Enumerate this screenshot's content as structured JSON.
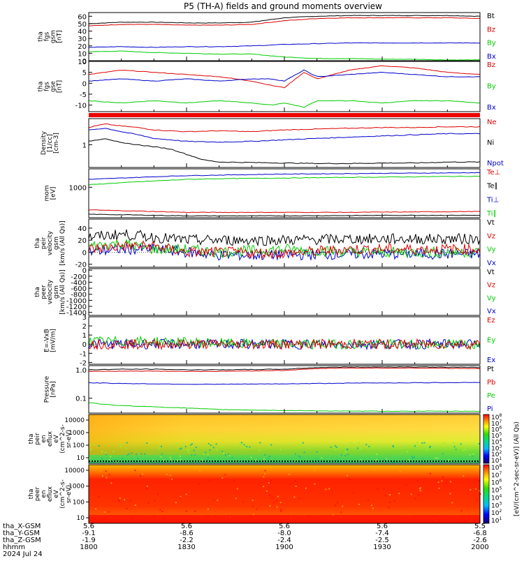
{
  "title": "P5 (TH-A) fields and ground moments overview",
  "colors": {
    "black": "#000000",
    "red": "#dd0000",
    "green": "#00cc00",
    "blue": "#0000cc",
    "axis": "#000000"
  },
  "chart_data": [
    {
      "type": "line",
      "id": "bgsm",
      "ylabel": [
        "tha",
        "fgs",
        "gsm",
        "[nT]"
      ],
      "ylim": [
        0,
        65
      ],
      "yticks": [
        0,
        10,
        20,
        30,
        40,
        50,
        60
      ],
      "legend": [
        {
          "name": "Bt",
          "color": "black"
        },
        {
          "name": "Bz",
          "color": "red"
        },
        {
          "name": "By",
          "color": "green"
        },
        {
          "name": "Bx",
          "color": "blue"
        }
      ],
      "series": [
        {
          "name": "Bt",
          "color": "black",
          "x": [
            0,
            10,
            20,
            30,
            40,
            50,
            60,
            70,
            80,
            90,
            100,
            110,
            120
          ],
          "y": [
            50,
            52,
            52,
            51,
            51,
            52,
            58,
            60,
            61,
            61,
            61,
            61,
            60
          ]
        },
        {
          "name": "Bz",
          "color": "red",
          "x": [
            0,
            10,
            20,
            30,
            40,
            50,
            60,
            70,
            80,
            90,
            100,
            110,
            120
          ],
          "y": [
            47,
            49,
            49,
            48,
            48,
            49,
            54,
            57,
            58,
            58,
            58,
            58,
            57
          ]
        },
        {
          "name": "By",
          "color": "green",
          "x": [
            0,
            10,
            20,
            30,
            40,
            50,
            60,
            70,
            80,
            90,
            100,
            110,
            120
          ],
          "y": [
            12,
            13,
            11,
            10,
            9,
            9,
            5,
            3,
            3,
            2,
            2,
            1,
            1
          ]
        },
        {
          "name": "Bx",
          "color": "blue",
          "x": [
            0,
            10,
            20,
            30,
            40,
            50,
            60,
            70,
            80,
            90,
            100,
            110,
            120
          ],
          "y": [
            18,
            19,
            18,
            19,
            19,
            20,
            22,
            23,
            24,
            24,
            24,
            24,
            24
          ]
        }
      ]
    },
    {
      "type": "line",
      "id": "bgse",
      "ylabel": [
        "tha",
        "fgs",
        "gse",
        "[nT]"
      ],
      "ylim": [
        -13,
        10
      ],
      "yticks": [
        -10,
        -5,
        0,
        5,
        10
      ],
      "legend": [
        {
          "name": "Bz",
          "color": "red"
        },
        {
          "name": "By",
          "color": "green"
        },
        {
          "name": "Bx",
          "color": "blue"
        }
      ],
      "series": [
        {
          "name": "Bz",
          "color": "red",
          "x": [
            0,
            10,
            20,
            30,
            40,
            50,
            56,
            60,
            66,
            70,
            80,
            90,
            100,
            110,
            120
          ],
          "y": [
            4,
            6,
            5,
            4,
            3,
            1,
            -1,
            -2,
            5,
            2,
            6,
            8,
            7,
            5,
            4
          ]
        },
        {
          "name": "By",
          "color": "green",
          "x": [
            0,
            10,
            20,
            30,
            40,
            50,
            56,
            60,
            66,
            70,
            80,
            90,
            100,
            110,
            120
          ],
          "y": [
            -8,
            -9,
            -8,
            -9,
            -8,
            -9,
            -10,
            -9,
            -11,
            -8,
            -8,
            -9,
            -8,
            -8,
            -9
          ]
        },
        {
          "name": "Bx",
          "color": "blue",
          "x": [
            0,
            10,
            20,
            30,
            40,
            50,
            56,
            60,
            66,
            70,
            80,
            90,
            100,
            110,
            120
          ],
          "y": [
            1,
            2,
            1,
            2,
            1,
            2,
            2,
            1,
            6,
            3,
            4,
            5,
            4,
            3,
            3
          ]
        }
      ]
    },
    {
      "type": "line",
      "id": "density",
      "log": true,
      "ylabel": [
        "Density",
        "[1/cc]",
        "[cm-3]"
      ],
      "ylim": [
        0.3,
        4
      ],
      "yticks": [
        1
      ],
      "legend": [
        {
          "name": "Ne",
          "color": "red"
        },
        {
          "name": "Ni",
          "color": "black"
        },
        {
          "name": "Npot",
          "color": "blue"
        }
      ],
      "series": [
        {
          "name": "Ne",
          "color": "red",
          "x": [
            0,
            5,
            10,
            15,
            20,
            30,
            40,
            50,
            60,
            70,
            80,
            90,
            100,
            110,
            120
          ],
          "y": [
            2.5,
            3.0,
            2.7,
            2.5,
            2.2,
            2.0,
            2.1,
            2.0,
            2.2,
            2.3,
            2.4,
            2.5,
            2.5,
            2.6,
            2.6
          ]
        },
        {
          "name": "Ni",
          "color": "black",
          "x": [
            0,
            5,
            10,
            15,
            20,
            25,
            30,
            35,
            40,
            50,
            60,
            70,
            80,
            90,
            100,
            110,
            120
          ],
          "y": [
            1.2,
            1.4,
            1.1,
            1.0,
            0.9,
            0.8,
            0.6,
            0.45,
            0.4,
            0.39,
            0.38,
            0.37,
            0.37,
            0.38,
            0.38,
            0.4,
            0.4
          ]
        },
        {
          "name": "Npot",
          "color": "blue",
          "x": [
            0,
            5,
            10,
            15,
            20,
            30,
            40,
            50,
            60,
            70,
            80,
            90,
            100,
            110,
            120
          ],
          "y": [
            2.2,
            2.4,
            2.0,
            1.7,
            1.4,
            1.2,
            1.15,
            1.2,
            1.3,
            1.4,
            1.5,
            1.6,
            1.7,
            1.8,
            1.8
          ]
        }
      ]
    },
    {
      "type": "line",
      "id": "temp",
      "log": true,
      "ylabel": [
        "mom",
        "[eV]"
      ],
      "ylim": [
        100,
        4000
      ],
      "yticks": [
        1000
      ],
      "legend": [
        {
          "name": "Te⊥",
          "color": "red"
        },
        {
          "name": "Te∥",
          "color": "black"
        },
        {
          "name": "Ti⊥",
          "color": "blue"
        },
        {
          "name": "Ti∥",
          "color": "green"
        }
      ],
      "series": [
        {
          "name": "Te⊥",
          "color": "red",
          "x": [
            0,
            10,
            20,
            30,
            40,
            60,
            80,
            100,
            120
          ],
          "y": [
            180,
            170,
            160,
            150,
            150,
            150,
            150,
            155,
            160
          ]
        },
        {
          "name": "Te∥",
          "color": "black",
          "x": [
            0,
            10,
            20,
            30,
            40,
            60,
            80,
            100,
            120
          ],
          "y": [
            130,
            125,
            120,
            115,
            115,
            115,
            118,
            120,
            120
          ]
        },
        {
          "name": "Ti⊥",
          "color": "blue",
          "x": [
            0,
            10,
            20,
            30,
            40,
            60,
            80,
            100,
            120
          ],
          "y": [
            1800,
            2000,
            2200,
            2400,
            2500,
            2700,
            2800,
            2900,
            3000
          ]
        },
        {
          "name": "Ti∥",
          "color": "green",
          "x": [
            0,
            10,
            20,
            30,
            40,
            60,
            80,
            100,
            120
          ],
          "y": [
            1200,
            1400,
            1600,
            1800,
            1900,
            2000,
            2100,
            2200,
            2300
          ]
        }
      ]
    },
    {
      "type": "line",
      "id": "peir",
      "noise": true,
      "ylabel": [
        "tha",
        "peir",
        "velocity",
        "gsm",
        "[km/s (All Qs)]"
      ],
      "ylim": [
        -25,
        55
      ],
      "yticks": [
        -20,
        0,
        20,
        40
      ],
      "legend": [
        {
          "name": "Vt",
          "color": "black"
        },
        {
          "name": "Vz",
          "color": "red"
        },
        {
          "name": "Vy",
          "color": "green"
        },
        {
          "name": "Vx",
          "color": "blue"
        }
      ],
      "series": [
        {
          "name": "Vx",
          "color": "blue",
          "x": [
            0,
            10,
            20,
            30,
            40,
            60,
            80,
            100,
            120
          ],
          "y": [
            0,
            5,
            5,
            0,
            -5,
            -5,
            -3,
            -3,
            -3
          ]
        },
        {
          "name": "Vy",
          "color": "green",
          "x": [
            0,
            10,
            20,
            30,
            40,
            60,
            80,
            100,
            120
          ],
          "y": [
            10,
            15,
            5,
            5,
            0,
            5,
            0,
            0,
            0
          ]
        },
        {
          "name": "Vz",
          "color": "red",
          "x": [
            0,
            10,
            20,
            30,
            40,
            60,
            80,
            100,
            120
          ],
          "y": [
            5,
            10,
            10,
            0,
            0,
            -2,
            5,
            5,
            5
          ]
        },
        {
          "name": "Vt",
          "color": "black",
          "x": [
            0,
            10,
            20,
            30,
            40,
            60,
            80,
            100,
            120
          ],
          "y": [
            25,
            30,
            25,
            20,
            20,
            20,
            22,
            22,
            22
          ]
        }
      ]
    },
    {
      "type": "line",
      "id": "peer",
      "ylabel": [
        "tha",
        "peer",
        "velocity",
        "gsm",
        "[km/s (All Qs)]"
      ],
      "ylim": [
        -1500,
        50
      ],
      "yticks": [
        -1400,
        -1200,
        -1000,
        -800,
        -600,
        -400,
        -200,
        0
      ],
      "legend": [
        {
          "name": "Vt",
          "color": "black"
        },
        {
          "name": "Vz",
          "color": "red"
        },
        {
          "name": "Vy",
          "color": "green"
        },
        {
          "name": "Vx",
          "color": "blue"
        }
      ],
      "series": []
    },
    {
      "type": "line",
      "id": "efield",
      "noise": true,
      "ylabel": [
        "E=-VxB",
        "[mV/m]"
      ],
      "ylim": [
        -2.2,
        3
      ],
      "yticks": [
        -2,
        -1,
        0,
        1,
        2,
        3
      ],
      "legend": [
        {
          "name": "Ez",
          "color": "red"
        },
        {
          "name": "Ey",
          "color": "green"
        },
        {
          "name": "Ex",
          "color": "blue"
        }
      ],
      "series": [
        {
          "name": "Ex",
          "color": "blue",
          "x": [
            0,
            20,
            40,
            60,
            80,
            100,
            120
          ],
          "y": [
            0,
            0,
            0,
            0,
            0,
            0,
            0
          ]
        },
        {
          "name": "Ey",
          "color": "green",
          "x": [
            0,
            20,
            40,
            60,
            80,
            100,
            120
          ],
          "y": [
            0.3,
            0.3,
            0.1,
            0,
            0,
            0,
            0
          ]
        },
        {
          "name": "Ez",
          "color": "red",
          "x": [
            0,
            20,
            40,
            60,
            80,
            100,
            120
          ],
          "y": [
            0,
            0,
            0,
            0,
            0,
            0,
            0
          ]
        }
      ]
    },
    {
      "type": "line",
      "id": "pressure",
      "log": true,
      "ylabel": [
        "Pressure",
        "[nPa]"
      ],
      "ylim": [
        0.03,
        1.4
      ],
      "yticks": [
        0.1,
        1.0
      ],
      "legend": [
        {
          "name": "Pt",
          "color": "black"
        },
        {
          "name": "Pb",
          "color": "red"
        },
        {
          "name": "Pe",
          "color": "green"
        },
        {
          "name": "Pi",
          "color": "blue"
        }
      ],
      "series": [
        {
          "name": "Pt",
          "color": "black",
          "x": [
            0,
            10,
            20,
            30,
            40,
            60,
            70,
            80,
            100,
            120
          ],
          "y": [
            1.0,
            1.05,
            1.05,
            1.0,
            1.0,
            1.05,
            1.2,
            1.25,
            1.25,
            1.2
          ]
        },
        {
          "name": "Pb",
          "color": "red",
          "x": [
            0,
            10,
            20,
            30,
            40,
            60,
            70,
            80,
            100,
            120
          ],
          "y": [
            0.88,
            0.9,
            0.9,
            0.88,
            0.88,
            0.95,
            1.1,
            1.15,
            1.15,
            1.1
          ]
        },
        {
          "name": "Pi",
          "color": "blue",
          "x": [
            0,
            10,
            20,
            30,
            40,
            60,
            80,
            100,
            120
          ],
          "y": [
            0.35,
            0.33,
            0.32,
            0.31,
            0.31,
            0.32,
            0.34,
            0.35,
            0.36
          ]
        },
        {
          "name": "Pe",
          "color": "green",
          "x": [
            0,
            5,
            10,
            20,
            30,
            40,
            60,
            80,
            100,
            120
          ],
          "y": [
            0.07,
            0.06,
            0.055,
            0.05,
            0.045,
            0.04,
            0.037,
            0.035,
            0.035,
            0.035
          ]
        }
      ]
    },
    {
      "type": "heatmap",
      "id": "peirflux",
      "ylabel": [
        "tha",
        "peir",
        "en",
        "eflux",
        "eV",
        "(cm^2-s-",
        "sr-eV)"
      ],
      "yticks": [
        "10000",
        "1000",
        "100",
        "10"
      ]
    },
    {
      "type": "heatmap",
      "id": "peerflux",
      "ylabel": [
        "tha",
        "peer",
        "en",
        "eflux",
        "eV",
        "(cm^2-s-",
        "sr-eV)"
      ],
      "yticks": [
        "10000",
        "1000",
        "100",
        "10"
      ]
    }
  ],
  "colorbar": {
    "ticks": [
      "10^8",
      "10^7",
      "10^6",
      "10^5",
      "10^4",
      "10^3",
      "10^2",
      "10^1"
    ],
    "label": "[eV/(cm^2-sec-sr-eV)] (All Qs)"
  },
  "xaxis": {
    "rows": [
      {
        "label": "tha_X-GSM",
        "values": [
          "5.6",
          "5.6",
          "5.6",
          "5.6",
          "5.5"
        ]
      },
      {
        "label": "tha_Y-GSM",
        "values": [
          "-9.1",
          "-8.6",
          "-8.0",
          "-7.4",
          "-6.8"
        ]
      },
      {
        "label": "tha_Z-GSM",
        "values": [
          "-1.9",
          "-2.2",
          "-2.4",
          "-2.5",
          "-2.6"
        ]
      },
      {
        "label": "hhmm",
        "values": [
          "1800",
          "1830",
          "1900",
          "1930",
          "2000"
        ]
      }
    ],
    "date": "2024 Jul 24"
  }
}
